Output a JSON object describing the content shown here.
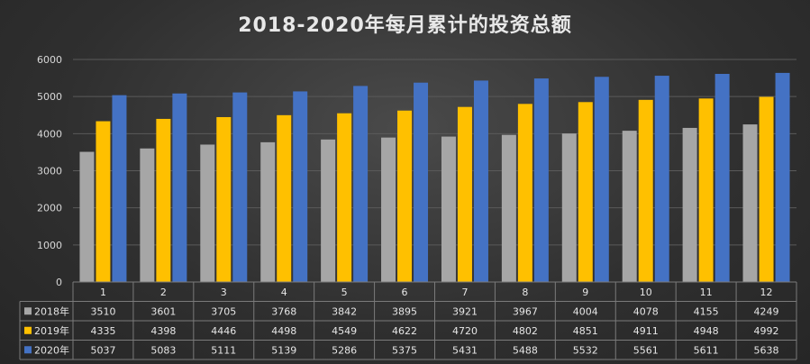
{
  "chart_data": {
    "type": "bar",
    "title": "2018-2020年每月累计的投资总额",
    "categories": [
      "1",
      "2",
      "3",
      "4",
      "5",
      "6",
      "7",
      "8",
      "9",
      "10",
      "11",
      "12"
    ],
    "series": [
      {
        "name": "2018年",
        "color": "#a6a6a6",
        "values": [
          3510,
          3601,
          3705,
          3768,
          3842,
          3895,
          3921,
          3967,
          4004,
          4078,
          4155,
          4249
        ]
      },
      {
        "name": "2019年",
        "color": "#ffc000",
        "values": [
          4335,
          4398,
          4446,
          4498,
          4549,
          4622,
          4720,
          4802,
          4851,
          4911,
          4948,
          4992
        ]
      },
      {
        "name": "2020年",
        "color": "#4472c4",
        "values": [
          5037,
          5083,
          5111,
          5139,
          5286,
          5375,
          5431,
          5488,
          5532,
          5561,
          5611,
          5638
        ]
      }
    ],
    "ylim": [
      0,
      6000
    ],
    "yticks": [
      0,
      1000,
      2000,
      3000,
      4000,
      5000,
      6000
    ],
    "grid": true,
    "legend": "data-table"
  }
}
